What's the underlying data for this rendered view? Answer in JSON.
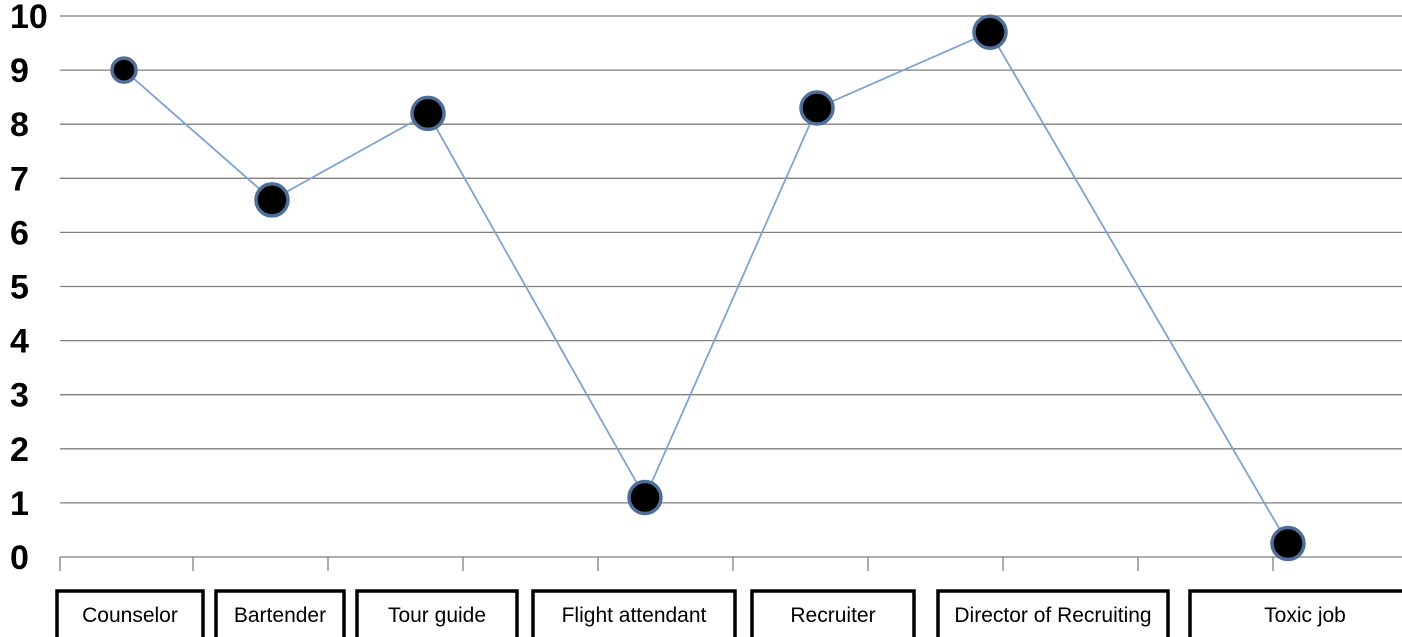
{
  "chart_data": {
    "type": "line",
    "categories": [
      "Counselor",
      "Bartender",
      "Tour guide",
      "Flight attendant",
      "Recruiter",
      "Director of  Recruiting",
      "Toxic job"
    ],
    "series": [
      {
        "values": [
          9.0,
          6.6,
          8.2,
          1.1,
          8.3,
          9.7,
          0.25
        ]
      }
    ],
    "yticks": [
      "0",
      "1",
      "2",
      "3",
      "4",
      "5",
      "6",
      "7",
      "8",
      "9",
      "10"
    ],
    "ylim": [
      0,
      10
    ],
    "grid": true,
    "title": "",
    "xlabel": "",
    "ylabel": "",
    "colors": {
      "line": "#7fa3cf",
      "marker_fill": "#000000",
      "marker_edge": "#4f6f9a",
      "grid": "#7f7f7f"
    }
  }
}
